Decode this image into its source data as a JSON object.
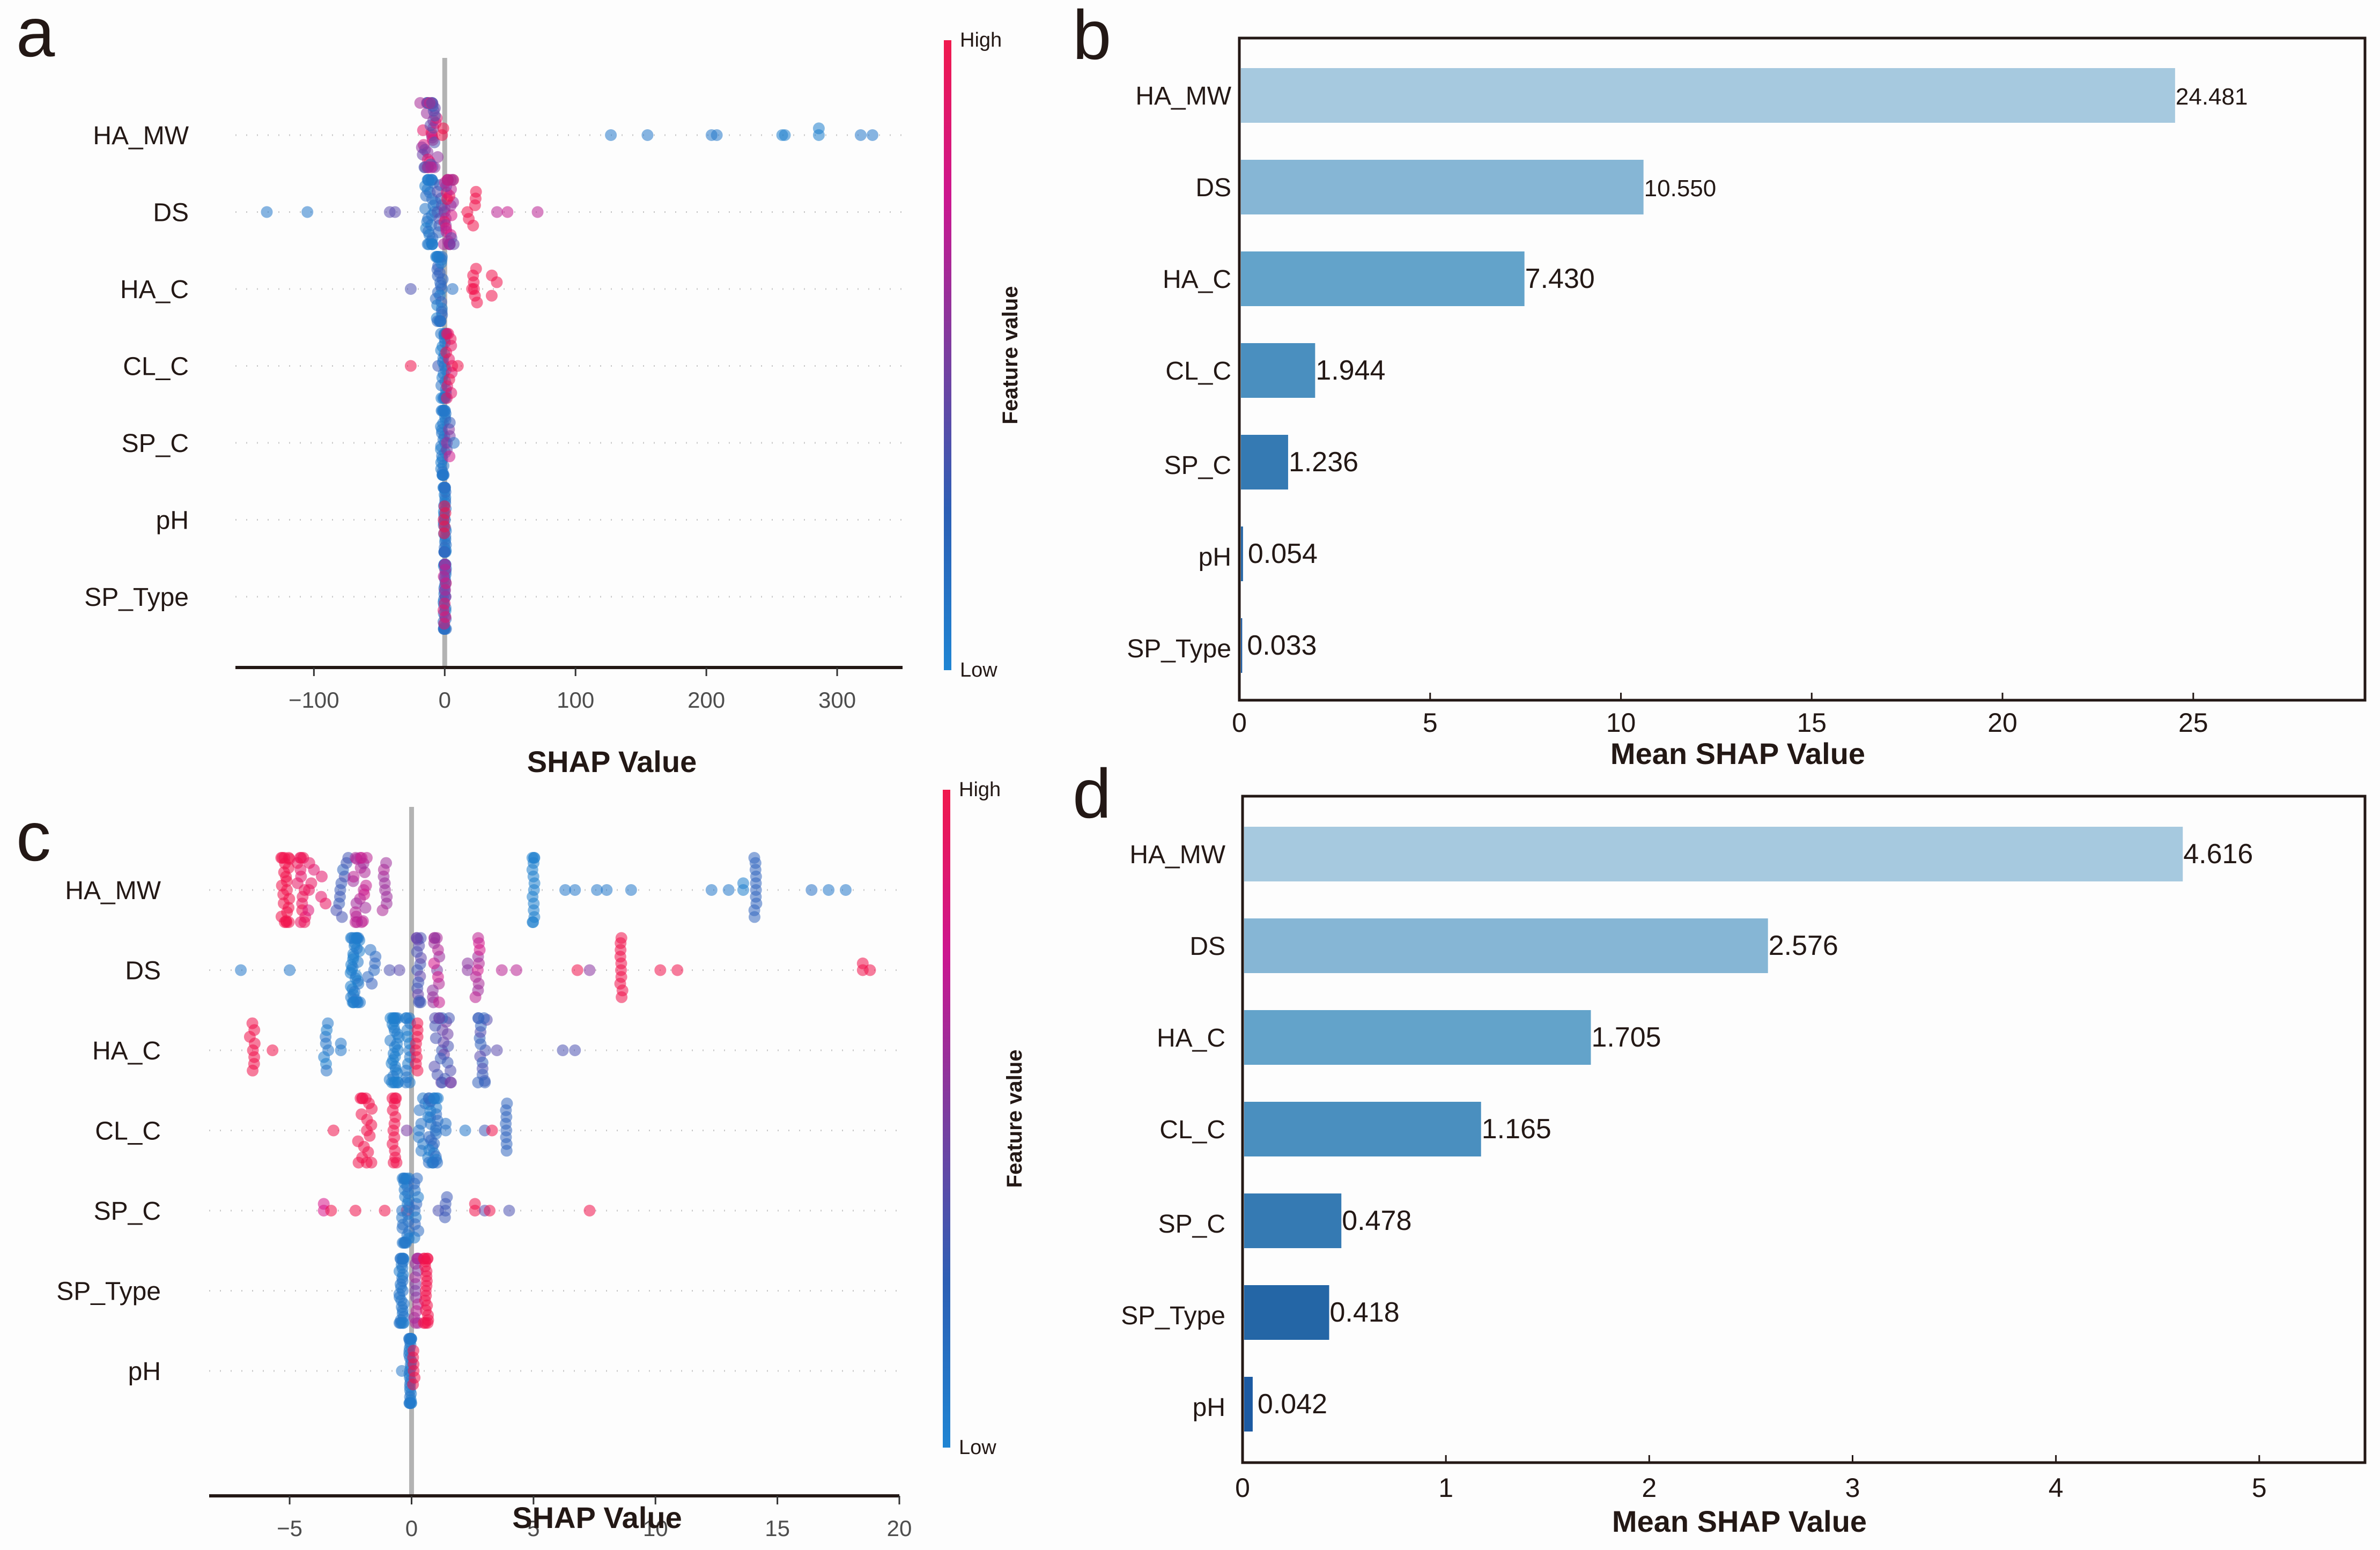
{
  "colors": {
    "low": "#1f7fce",
    "mid": "#7a3ea0",
    "high": "#f0134d",
    "zero_line": "#b3b3b3",
    "axis": "#231815",
    "grid_dots": "#cccccc"
  },
  "chart_data": [
    {
      "id": "a",
      "panel_letter": "a",
      "type": "scatter",
      "subtype": "shap-beeswarm",
      "xlabel": "SHAP Value",
      "xlim": [
        -160,
        350
      ],
      "xticks": [
        -100,
        0,
        100,
        200,
        300
      ],
      "xtick_labels": [
        "−100",
        "0",
        "100",
        "200",
        "300"
      ],
      "colorbar": {
        "title": "Feature value",
        "high_label": "High",
        "low_label": "Low"
      },
      "features": [
        {
          "name": "HA_MW",
          "clusters": [
            {
              "x": -12,
              "spread": 7,
              "n": 40,
              "c": 0.6,
              "cv": 0.4
            },
            {
              "x": -2,
              "spread": 1,
              "n": 2,
              "c": 1.0,
              "cv": 0
            },
            {
              "x": 127,
              "n": 1,
              "c": 0.05
            },
            {
              "x": 155,
              "n": 1,
              "c": 0.05
            },
            {
              "x": 204,
              "n": 1,
              "c": 0.05
            },
            {
              "x": 208,
              "n": 1,
              "c": 0.05
            },
            {
              "x": 258,
              "n": 1,
              "c": 0.0
            },
            {
              "x": 260,
              "n": 1,
              "c": 0.0
            },
            {
              "x": 286,
              "n": 2,
              "c": 0.0
            },
            {
              "x": 318,
              "n": 1,
              "c": 0.05
            },
            {
              "x": 327,
              "n": 1,
              "c": 0.05
            }
          ]
        },
        {
          "name": "DS",
          "clusters": [
            {
              "x": -136,
              "n": 1,
              "c": 0.05
            },
            {
              "x": -105,
              "n": 1,
              "c": 0.05
            },
            {
              "x": -42,
              "n": 1,
              "c": 0.4
            },
            {
              "x": -38,
              "n": 1,
              "c": 0.4
            },
            {
              "x": -11,
              "spread": 4,
              "n": 30,
              "c": 0.05,
              "cv": 0.1
            },
            {
              "x": -4,
              "spread": 2,
              "n": 8,
              "c": 0.3,
              "cv": 0.1
            },
            {
              "x": 3,
              "spread": 4,
              "n": 30,
              "c": 0.7,
              "cv": 0.3
            },
            {
              "x": 20,
              "spread": 4,
              "n": 6,
              "c": 1.0,
              "cv": 0
            },
            {
              "x": 40,
              "n": 1,
              "c": 0.7
            },
            {
              "x": 48,
              "n": 1,
              "c": 0.75
            },
            {
              "x": 71,
              "n": 1,
              "c": 0.7
            }
          ]
        },
        {
          "name": "HA_C",
          "clusters": [
            {
              "x": -26,
              "n": 1,
              "c": 0.35
            },
            {
              "x": -4,
              "spread": 3,
              "n": 30,
              "c": 0.1,
              "cv": 0.15
            },
            {
              "x": 6,
              "n": 1,
              "c": 0.1
            },
            {
              "x": 22,
              "spread": 2,
              "n": 4,
              "c": 1.0,
              "cv": 0
            },
            {
              "x": 30,
              "spread": 10,
              "n": 6,
              "c": 1.0,
              "cv": 0
            }
          ]
        },
        {
          "name": "CL_C",
          "clusters": [
            {
              "x": -26,
              "n": 1,
              "c": 1.0
            },
            {
              "x": -5,
              "n": 1,
              "c": 0.3
            },
            {
              "x": -1,
              "spread": 2,
              "n": 25,
              "c": 0.05,
              "cv": 0.05
            },
            {
              "x": 4,
              "spread": 3,
              "n": 12,
              "c": 0.95,
              "cv": 0.05
            },
            {
              "x": 10,
              "n": 1,
              "c": 1.0
            }
          ]
        },
        {
          "name": "SP_C",
          "clusters": [
            {
              "x": -1,
              "spread": 2,
              "n": 30,
              "c": 0.05,
              "cv": 0.05
            },
            {
              "x": 2,
              "spread": 2,
              "n": 6,
              "c": 0.5,
              "cv": 0.3
            },
            {
              "x": 7,
              "n": 1,
              "c": 0.1
            }
          ]
        },
        {
          "name": "pH",
          "clusters": [
            {
              "x": 0,
              "spread": 1,
              "n": 35,
              "c": 0.1,
              "cv": 0.1
            },
            {
              "x": 0,
              "spread": 1,
              "n": 5,
              "c": 1.0,
              "cv": 0
            }
          ]
        },
        {
          "name": "SP_Type",
          "clusters": [
            {
              "x": 0,
              "spread": 1,
              "n": 35,
              "c": 0.1,
              "cv": 0.1
            },
            {
              "x": 0,
              "spread": 1,
              "n": 10,
              "c": 0.7,
              "cv": 0.2
            }
          ]
        }
      ]
    },
    {
      "id": "b",
      "panel_letter": "b",
      "type": "bar",
      "orientation": "horizontal",
      "xlabel": "Mean  SHAP Value",
      "xlim": [
        0,
        29.5
      ],
      "xticks": [
        0,
        5,
        10,
        15,
        20,
        25
      ],
      "categories": [
        "HA_MW",
        "DS",
        "HA_C",
        "CL_C",
        "SP_C",
        "pH",
        "SP_Type"
      ],
      "values": [
        24.481,
        10.55,
        7.43,
        1.944,
        1.236,
        0.054,
        0.033
      ],
      "value_labels": [
        "24.481",
        "10.550",
        "7.430",
        "1.944",
        "1.236",
        "0.054",
        "0.033"
      ],
      "bar_colors": [
        "#a6c9df",
        "#86b6d5",
        "#63a3ca",
        "#4a8fbf",
        "#357ab3",
        "#2466a6",
        "#1c5aa2"
      ]
    },
    {
      "id": "c",
      "panel_letter": "c",
      "type": "scatter",
      "subtype": "shap-beeswarm",
      "xlabel": "SHAP Value",
      "xlim": [
        -8.3,
        20
      ],
      "xticks": [
        -5,
        0,
        5,
        10,
        15,
        20
      ],
      "xtick_labels": [
        "−5",
        "0",
        "5",
        "10",
        "15",
        "20"
      ],
      "colorbar": {
        "title": "Feature value",
        "high_label": "High",
        "low_label": "Low"
      },
      "features": [
        {
          "name": "HA_MW",
          "clusters": [
            {
              "x": -5.2,
              "spread": 0.2,
              "n": 22,
              "c": 1.0,
              "cv": 0
            },
            {
              "x": -4.5,
              "spread": 0.2,
              "n": 14,
              "c": 0.95,
              "cv": 0.05
            },
            {
              "x": -3.9,
              "spread": 0.4,
              "n": 8,
              "c": 0.9,
              "cv": 0.05
            },
            {
              "x": -2.8,
              "spread": 0.3,
              "n": 10,
              "c": 0.25,
              "cv": 0.1
            },
            {
              "x": -2.1,
              "spread": 0.3,
              "n": 22,
              "c": 0.7,
              "cv": 0.1
            },
            {
              "x": -1.1,
              "spread": 0.1,
              "n": 8,
              "c": 0.65,
              "cv": 0.05
            },
            {
              "x": 5.0,
              "spread": 0.05,
              "n": 14,
              "c": 0.0,
              "cv": 0
            },
            {
              "x": 6.3,
              "n": 1,
              "c": 0.05
            },
            {
              "x": 6.7,
              "n": 1,
              "c": 0.05
            },
            {
              "x": 7.6,
              "n": 1,
              "c": 0.05
            },
            {
              "x": 8.0,
              "n": 1,
              "c": 0.05
            },
            {
              "x": 9.0,
              "n": 1,
              "c": 0.05
            },
            {
              "x": 12.3,
              "n": 1,
              "c": 0.05
            },
            {
              "x": 13.0,
              "n": 1,
              "c": 0.05
            },
            {
              "x": 13.6,
              "n": 2,
              "c": 0.0
            },
            {
              "x": 14.1,
              "spread": 0.05,
              "n": 10,
              "c": 0.2,
              "cv": 0
            },
            {
              "x": 16.4,
              "n": 1,
              "c": 0.1
            },
            {
              "x": 17.1,
              "n": 1,
              "c": 0.05
            },
            {
              "x": 17.8,
              "n": 1,
              "c": 0.05
            }
          ]
        },
        {
          "name": "DS",
          "clusters": [
            {
              "x": -7.0,
              "n": 1,
              "c": 0.05
            },
            {
              "x": -5.0,
              "n": 1,
              "c": 0.05
            },
            {
              "x": -2.3,
              "spread": 0.2,
              "n": 36,
              "c": 0.0,
              "cv": 0.08
            },
            {
              "x": -1.6,
              "spread": 0.2,
              "n": 6,
              "c": 0.15,
              "cv": 0.1
            },
            {
              "x": -0.9,
              "n": 1,
              "c": 0.35
            },
            {
              "x": -0.5,
              "n": 1,
              "c": 0.4
            },
            {
              "x": 0.3,
              "spread": 0.1,
              "n": 16,
              "c": 0.4,
              "cv": 0.1
            },
            {
              "x": 1.0,
              "spread": 0.15,
              "n": 14,
              "c": 0.55,
              "cv": 0.25
            },
            {
              "x": 2.3,
              "n": 2,
              "c": 0.55
            },
            {
              "x": 2.7,
              "spread": 0.1,
              "n": 10,
              "c": 0.7,
              "cv": 0.1
            },
            {
              "x": 3.7,
              "n": 1,
              "c": 0.7
            },
            {
              "x": 4.3,
              "n": 1,
              "c": 0.7
            },
            {
              "x": 6.8,
              "n": 1,
              "c": 1.0
            },
            {
              "x": 7.3,
              "n": 1,
              "c": 0.55
            },
            {
              "x": 8.6,
              "spread": 0.05,
              "n": 10,
              "c": 1.0,
              "cv": 0
            },
            {
              "x": 10.2,
              "n": 1,
              "c": 1.0
            },
            {
              "x": 10.9,
              "n": 1,
              "c": 1.0
            },
            {
              "x": 18.5,
              "n": 2,
              "c": 1.0
            },
            {
              "x": 18.8,
              "n": 1,
              "c": 1.0
            }
          ]
        },
        {
          "name": "HA_C",
          "clusters": [
            {
              "x": -6.5,
              "spread": 0.15,
              "n": 8,
              "c": 1.0,
              "cv": 0
            },
            {
              "x": -5.7,
              "n": 1,
              "c": 1.0
            },
            {
              "x": -3.5,
              "spread": 0.1,
              "n": 8,
              "c": 0.05,
              "cv": 0.05
            },
            {
              "x": -2.9,
              "n": 2,
              "c": 0.05
            },
            {
              "x": -0.7,
              "spread": 0.2,
              "n": 30,
              "c": 0.0,
              "cv": 0.05
            },
            {
              "x": -0.15,
              "spread": 0.1,
              "n": 14,
              "c": 0.05,
              "cv": 0.05
            },
            {
              "x": 0.2,
              "spread": 0.05,
              "n": 8,
              "c": 1.0,
              "cv": 0
            },
            {
              "x": 1.3,
              "spread": 0.4,
              "n": 24,
              "c": 0.35,
              "cv": 0.15
            },
            {
              "x": 2.9,
              "spread": 0.2,
              "n": 16,
              "c": 0.3,
              "cv": 0.1
            },
            {
              "x": 3.5,
              "n": 1,
              "c": 0.4
            },
            {
              "x": 6.2,
              "n": 1,
              "c": 0.35
            },
            {
              "x": 6.7,
              "n": 1,
              "c": 0.35
            }
          ]
        },
        {
          "name": "CL_C",
          "clusters": [
            {
              "x": -3.2,
              "n": 1,
              "c": 1.0
            },
            {
              "x": -1.9,
              "spread": 0.3,
              "n": 18,
              "c": 1.0,
              "cv": 0
            },
            {
              "x": -0.7,
              "spread": 0.1,
              "n": 14,
              "c": 1.0,
              "cv": 0
            },
            {
              "x": -0.2,
              "n": 1,
              "c": 0.5
            },
            {
              "x": 0.5,
              "spread": 0.2,
              "n": 10,
              "c": 0.05,
              "cv": 0.05
            },
            {
              "x": 0.9,
              "spread": 0.2,
              "n": 30,
              "c": 0.1,
              "cv": 0.1
            },
            {
              "x": 1.4,
              "n": 2,
              "c": 0.1
            },
            {
              "x": 2.2,
              "n": 1,
              "c": 0.05
            },
            {
              "x": 3.0,
              "n": 1,
              "c": 0.3
            },
            {
              "x": 3.3,
              "n": 1,
              "c": 1.0
            },
            {
              "x": 3.9,
              "spread": 0.05,
              "n": 8,
              "c": 0.2,
              "cv": 0
            }
          ]
        },
        {
          "name": "SP_C",
          "clusters": [
            {
              "x": -3.6,
              "n": 2,
              "c": 0.8
            },
            {
              "x": -3.3,
              "n": 1,
              "c": 1.0
            },
            {
              "x": -2.3,
              "n": 1,
              "c": 1.0
            },
            {
              "x": -1.1,
              "n": 1,
              "c": 1.0
            },
            {
              "x": -0.2,
              "n": 1,
              "c": 1.0
            },
            {
              "x": -0.25,
              "spread": 0.15,
              "n": 28,
              "c": 0.05,
              "cv": 0.05
            },
            {
              "x": 0.2,
              "spread": 0.1,
              "n": 10,
              "c": 0.1,
              "cv": 0.1
            },
            {
              "x": 1.1,
              "n": 1,
              "c": 0.35
            },
            {
              "x": 1.4,
              "spread": 0.05,
              "n": 4,
              "c": 0.3,
              "cv": 0
            },
            {
              "x": 2.6,
              "n": 2,
              "c": 1.0
            },
            {
              "x": 3.0,
              "n": 1,
              "c": 0.4
            },
            {
              "x": 3.2,
              "n": 1,
              "c": 1.0
            },
            {
              "x": 4.0,
              "n": 1,
              "c": 0.35
            },
            {
              "x": 7.3,
              "n": 1,
              "c": 1.0
            }
          ]
        },
        {
          "name": "SP_Type",
          "clusters": [
            {
              "x": -0.4,
              "spread": 0.1,
              "n": 30,
              "c": 0.05,
              "cv": 0.05
            },
            {
              "x": 0.2,
              "spread": 0.1,
              "n": 14,
              "c": 0.6,
              "cv": 0.1
            },
            {
              "x": 0.6,
              "spread": 0.1,
              "n": 20,
              "c": 1.0,
              "cv": 0
            }
          ]
        },
        {
          "name": "pH",
          "clusters": [
            {
              "x": -0.05,
              "spread": 0.05,
              "n": 30,
              "c": 0.05,
              "cv": 0.05
            },
            {
              "x": -0.4,
              "n": 1,
              "c": 0.05
            },
            {
              "x": 0.1,
              "spread": 0.05,
              "n": 6,
              "c": 1.0,
              "cv": 0
            }
          ]
        }
      ]
    },
    {
      "id": "d",
      "panel_letter": "d",
      "type": "bar",
      "orientation": "horizontal",
      "xlabel": "Mean  SHAP Value",
      "xlim": [
        0,
        5.52
      ],
      "xticks": [
        0,
        1,
        2,
        3,
        4,
        5
      ],
      "categories": [
        "HA_MW",
        "DS",
        "HA_C",
        "CL_C",
        "SP_C",
        "SP_Type",
        "pH"
      ],
      "values": [
        4.616,
        2.576,
        1.705,
        1.165,
        0.478,
        0.418,
        0.042
      ],
      "value_labels": [
        "4.616",
        "2.576",
        "1.705",
        "1.165",
        "0.478",
        "0.418",
        "0.042"
      ],
      "bar_colors": [
        "#a6c9df",
        "#86b6d5",
        "#63a3ca",
        "#4a8fbf",
        "#357ab3",
        "#2466a6",
        "#1c5aa2"
      ]
    }
  ]
}
